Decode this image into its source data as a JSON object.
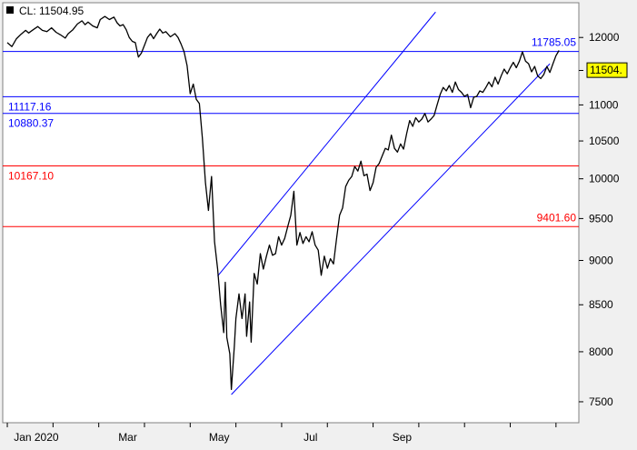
{
  "chart_data": {
    "type": "line",
    "title": "CL: 11504.95",
    "series": [
      {
        "name": "CL",
        "color": "#000000",
        "points": [
          [
            0,
            11920
          ],
          [
            3,
            11860
          ],
          [
            6,
            11980
          ],
          [
            9,
            12050
          ],
          [
            12,
            12110
          ],
          [
            14,
            12070
          ],
          [
            17,
            12120
          ],
          [
            20,
            12170
          ],
          [
            23,
            12110
          ],
          [
            26,
            12090
          ],
          [
            29,
            12150
          ],
          [
            32,
            12080
          ],
          [
            35,
            12040
          ],
          [
            38,
            11990
          ],
          [
            40,
            12060
          ],
          [
            43,
            12120
          ],
          [
            46,
            12210
          ],
          [
            49,
            12260
          ],
          [
            51,
            12200
          ],
          [
            53,
            12240
          ],
          [
            56,
            12180
          ],
          [
            59,
            12150
          ],
          [
            61,
            12280
          ],
          [
            64,
            12330
          ],
          [
            67,
            12280
          ],
          [
            70,
            12320
          ],
          [
            72,
            12230
          ],
          [
            74,
            12180
          ],
          [
            76,
            12200
          ],
          [
            78,
            12120
          ],
          [
            80,
            12000
          ],
          [
            82,
            11940
          ],
          [
            84,
            11920
          ],
          [
            86,
            11700
          ],
          [
            88,
            11760
          ],
          [
            90,
            11880
          ],
          [
            92,
            12000
          ],
          [
            94,
            12060
          ],
          [
            96,
            11980
          ],
          [
            98,
            12060
          ],
          [
            100,
            12130
          ],
          [
            102,
            12070
          ],
          [
            104,
            12090
          ],
          [
            107,
            12010
          ],
          [
            110,
            12060
          ],
          [
            112,
            12000
          ],
          [
            114,
            11900
          ],
          [
            116,
            11780
          ],
          [
            118,
            11570
          ],
          [
            120,
            11160
          ],
          [
            122,
            11300
          ],
          [
            124,
            11080
          ],
          [
            126,
            11020
          ],
          [
            128,
            10540
          ],
          [
            130,
            9950
          ],
          [
            132,
            9600
          ],
          [
            134,
            10030
          ],
          [
            136,
            9220
          ],
          [
            138,
            8900
          ],
          [
            140,
            8500
          ],
          [
            142,
            8200
          ],
          [
            143,
            8750
          ],
          [
            144,
            8150
          ],
          [
            146,
            7980
          ],
          [
            147,
            7620
          ],
          [
            149,
            8060
          ],
          [
            150,
            8350
          ],
          [
            152,
            8620
          ],
          [
            154,
            8350
          ],
          [
            156,
            8620
          ],
          [
            157,
            8160
          ],
          [
            159,
            8530
          ],
          [
            160,
            8100
          ],
          [
            162,
            8850
          ],
          [
            164,
            8730
          ],
          [
            166,
            9080
          ],
          [
            168,
            8900
          ],
          [
            170,
            9050
          ],
          [
            172,
            9180
          ],
          [
            174,
            9060
          ],
          [
            176,
            9080
          ],
          [
            178,
            9280
          ],
          [
            180,
            9180
          ],
          [
            182,
            9260
          ],
          [
            184,
            9400
          ],
          [
            186,
            9540
          ],
          [
            188,
            9840
          ],
          [
            190,
            9180
          ],
          [
            192,
            9330
          ],
          [
            194,
            9200
          ],
          [
            196,
            9280
          ],
          [
            198,
            9220
          ],
          [
            200,
            9340
          ],
          [
            202,
            9180
          ],
          [
            204,
            9120
          ],
          [
            206,
            8830
          ],
          [
            208,
            9050
          ],
          [
            210,
            8910
          ],
          [
            212,
            9020
          ],
          [
            214,
            8960
          ],
          [
            216,
            9250
          ],
          [
            218,
            9540
          ],
          [
            220,
            9630
          ],
          [
            222,
            9900
          ],
          [
            224,
            9980
          ],
          [
            226,
            10030
          ],
          [
            228,
            10160
          ],
          [
            230,
            10100
          ],
          [
            232,
            10230
          ],
          [
            234,
            10040
          ],
          [
            236,
            10060
          ],
          [
            238,
            9850
          ],
          [
            240,
            9950
          ],
          [
            242,
            10150
          ],
          [
            244,
            10200
          ],
          [
            246,
            10300
          ],
          [
            248,
            10400
          ],
          [
            250,
            10380
          ],
          [
            252,
            10580
          ],
          [
            254,
            10400
          ],
          [
            256,
            10350
          ],
          [
            258,
            10460
          ],
          [
            260,
            10390
          ],
          [
            262,
            10600
          ],
          [
            264,
            10780
          ],
          [
            266,
            10700
          ],
          [
            268,
            10820
          ],
          [
            270,
            10760
          ],
          [
            272,
            10800
          ],
          [
            274,
            10880
          ],
          [
            276,
            10760
          ],
          [
            278,
            10800
          ],
          [
            280,
            10850
          ],
          [
            282,
            11000
          ],
          [
            284,
            11150
          ],
          [
            286,
            11250
          ],
          [
            288,
            11200
          ],
          [
            290,
            11280
          ],
          [
            292,
            11180
          ],
          [
            294,
            11330
          ],
          [
            296,
            11220
          ],
          [
            298,
            11180
          ],
          [
            300,
            11120
          ],
          [
            302,
            11150
          ],
          [
            304,
            10960
          ],
          [
            306,
            11110
          ],
          [
            308,
            11120
          ],
          [
            310,
            11200
          ],
          [
            312,
            11180
          ],
          [
            314,
            11250
          ],
          [
            316,
            11330
          ],
          [
            318,
            11260
          ],
          [
            320,
            11400
          ],
          [
            322,
            11300
          ],
          [
            324,
            11420
          ],
          [
            326,
            11520
          ],
          [
            328,
            11450
          ],
          [
            330,
            11540
          ],
          [
            332,
            11620
          ],
          [
            334,
            11540
          ],
          [
            336,
            11640
          ],
          [
            338,
            11780
          ],
          [
            340,
            11640
          ],
          [
            342,
            11600
          ],
          [
            344,
            11480
          ],
          [
            346,
            11560
          ],
          [
            348,
            11420
          ],
          [
            350,
            11380
          ],
          [
            352,
            11440
          ],
          [
            354,
            11560
          ],
          [
            356,
            11470
          ],
          [
            358,
            11600
          ],
          [
            360,
            11720
          ],
          [
            362,
            11800
          ]
        ]
      }
    ],
    "x_axis": {
      "labels": [
        "Jan 2020",
        "Mar",
        "May",
        "Jul",
        "Sep"
      ],
      "label_day": [
        19,
        79,
        139,
        199,
        259
      ]
    },
    "y_axis": {
      "ticks": [
        7500,
        8000,
        8500,
        9000,
        9500,
        10000,
        10500,
        11000,
        11500,
        12000
      ],
      "range": [
        7300,
        12550
      ],
      "scale": "log",
      "current_value_label": "11504."
    },
    "horizontal_levels": [
      {
        "value": 11785.05,
        "label": "11785.05",
        "color": "#0000ff",
        "label_side": "right"
      },
      {
        "value": 11117.16,
        "label": "11117.16",
        "color": "#0000ff",
        "label_side": "left"
      },
      {
        "value": 10880.37,
        "label": "10880.37",
        "color": "#0000ff",
        "label_side": "left"
      },
      {
        "value": 10167.1,
        "label": "10167.10",
        "color": "#ff0000",
        "label_side": "left"
      },
      {
        "value": 9401.6,
        "label": "9401.60",
        "color": "#ff0000",
        "label_side": "right"
      }
    ],
    "trend_channel": {
      "color": "#0000ff",
      "lower": [
        [
          147,
          7570
        ],
        [
          356,
          11600
        ]
      ],
      "upper": [
        [
          138,
          8820
        ],
        [
          281,
          12400
        ]
      ]
    },
    "grid": false,
    "legend": "none"
  }
}
